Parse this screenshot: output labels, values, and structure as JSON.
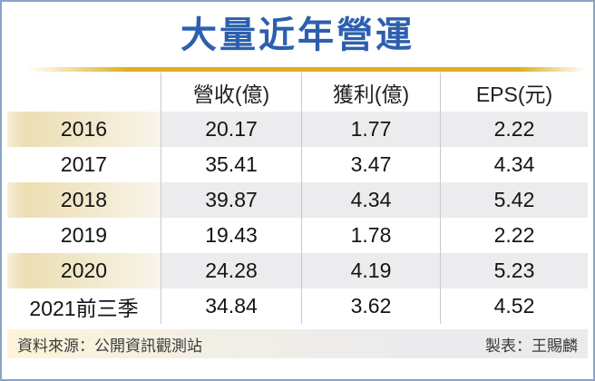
{
  "theme": {
    "title_blue": "#2d5fae",
    "gold": "#dfb01e",
    "border_blue": "#8aa3c6",
    "stripe_cream": "#ecdeb2",
    "stripe_gray": "#ececef"
  },
  "chart_data": {
    "type": "table",
    "title": "大量近年營運",
    "categories": [
      "2016",
      "2017",
      "2018",
      "2019",
      "2020",
      "2021前三季"
    ],
    "series": [
      {
        "name": "營收(億)",
        "values": [
          20.17,
          35.41,
          39.87,
          19.43,
          24.28,
          34.84
        ]
      },
      {
        "name": "獲利(億)",
        "values": [
          1.77,
          3.47,
          4.34,
          1.78,
          4.19,
          3.62
        ]
      },
      {
        "name": "EPS(元)",
        "values": [
          2.22,
          4.34,
          5.42,
          2.22,
          5.23,
          4.52
        ]
      }
    ],
    "corner_label": "",
    "source": "公開資訊觀測站",
    "credit": "王賜麟"
  },
  "footer": {
    "source_label": "資料來源：公開資訊觀測站",
    "credit_label": "製表：王賜麟"
  }
}
